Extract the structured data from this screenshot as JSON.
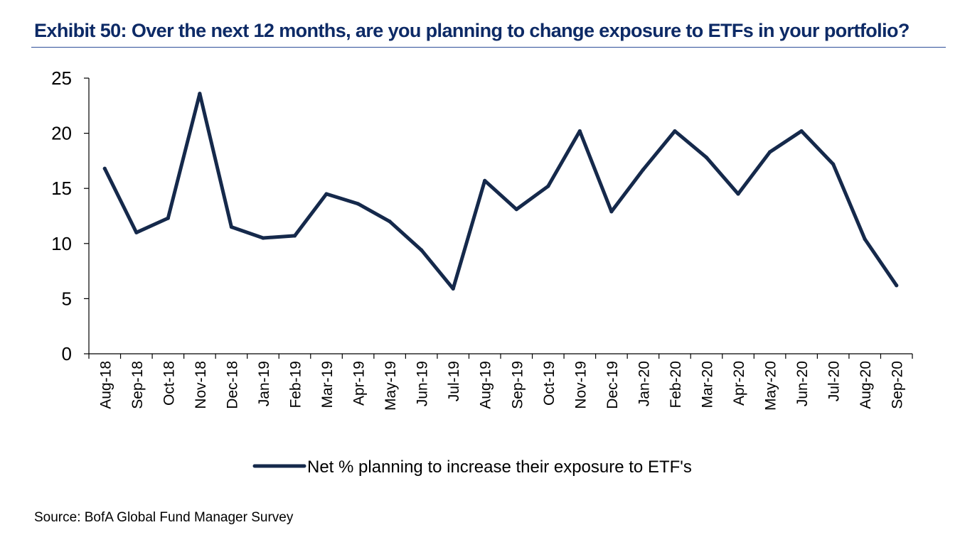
{
  "title": "Exhibit 50: Over the next 12 months, are you planning to change exposure to ETFs in your portfolio?",
  "source": "Source: BofA Global Fund Manager Survey",
  "colors": {
    "line": "#15294b",
    "title": "#0d2a66",
    "rule": "#2f4f9a"
  },
  "chart_data": {
    "type": "line",
    "title": "Exhibit 50: Over the next 12 months, are you planning to change exposure to ETFs in your portfolio?",
    "xlabel": "",
    "ylabel": "",
    "ylim": [
      0,
      25
    ],
    "yticks": [
      0,
      5,
      10,
      15,
      20,
      25
    ],
    "grid": false,
    "legend_position": "bottom",
    "categories": [
      "Aug-18",
      "Sep-18",
      "Oct-18",
      "Nov-18",
      "Dec-18",
      "Jan-19",
      "Feb-19",
      "Mar-19",
      "Apr-19",
      "May-19",
      "Jun-19",
      "Jul-19",
      "Aug-19",
      "Sep-19",
      "Oct-19",
      "Nov-19",
      "Dec-19",
      "Jan-20",
      "Feb-20",
      "Mar-20",
      "Apr-20",
      "May-20",
      "Jun-20",
      "Jul-20",
      "Aug-20",
      "Sep-20"
    ],
    "series": [
      {
        "name": "Net % planning to increase their exposure to ETF's",
        "color": "#15294b",
        "values": [
          16.8,
          11.0,
          12.3,
          23.6,
          11.5,
          10.5,
          10.7,
          14.5,
          13.6,
          12.0,
          9.4,
          5.9,
          15.7,
          13.1,
          15.2,
          20.2,
          12.9,
          16.7,
          20.2,
          17.8,
          14.5,
          18.3,
          20.2,
          17.2,
          10.4,
          6.2
        ]
      }
    ]
  }
}
